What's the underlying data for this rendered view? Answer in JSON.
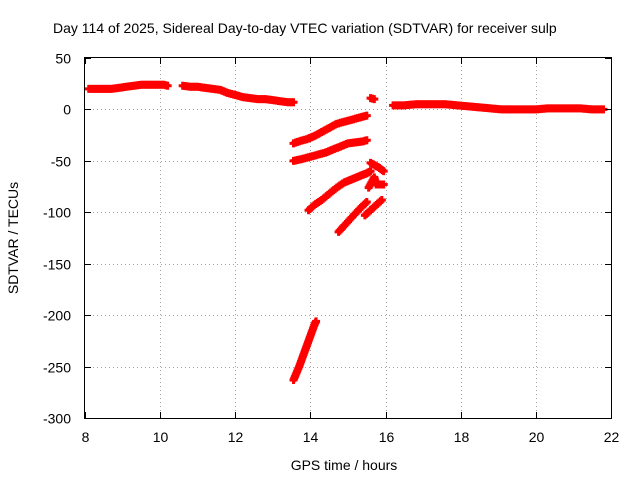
{
  "chart_data": {
    "type": "scatter",
    "title": "Day 114 of 2025, Sidereal Day-to-day VTEC variation (SDTVAR) for receiver sulp",
    "xlabel": "GPS time / hours",
    "ylabel": "SDTVAR / TECUs",
    "xlim": [
      8,
      22
    ],
    "ylim": [
      -300,
      50
    ],
    "xticks": [
      8,
      10,
      12,
      14,
      16,
      18,
      20,
      22
    ],
    "yticks": [
      50,
      0,
      -50,
      -100,
      -150,
      -200,
      -250,
      -300
    ],
    "grid": true,
    "marker_color": "#ff0000",
    "series": [
      {
        "name": "arc-1",
        "points": [
          [
            8.1,
            20
          ],
          [
            8.3,
            20
          ],
          [
            8.4,
            20
          ],
          [
            8.7,
            20
          ],
          [
            8.9,
            21
          ],
          [
            9.1,
            22
          ],
          [
            9.3,
            23
          ],
          [
            9.5,
            24
          ],
          [
            9.7,
            24
          ],
          [
            9.9,
            24
          ],
          [
            10.1,
            24
          ],
          [
            10.2,
            23
          ]
        ]
      },
      {
        "name": "arc-2",
        "points": [
          [
            10.6,
            23
          ],
          [
            10.8,
            22
          ],
          [
            11.0,
            22
          ],
          [
            11.2,
            21
          ],
          [
            11.4,
            20
          ],
          [
            11.6,
            19
          ],
          [
            11.8,
            16
          ],
          [
            12.0,
            14
          ],
          [
            12.2,
            12
          ],
          [
            12.4,
            11
          ],
          [
            12.6,
            10
          ],
          [
            12.8,
            10
          ],
          [
            13.0,
            9
          ],
          [
            13.2,
            8
          ],
          [
            13.4,
            7
          ],
          [
            13.55,
            7
          ]
        ]
      },
      {
        "name": "arc-3",
        "points": [
          [
            13.55,
            -33
          ],
          [
            13.7,
            -31
          ],
          [
            13.9,
            -29
          ],
          [
            14.1,
            -26
          ],
          [
            14.3,
            -22
          ],
          [
            14.5,
            -18
          ],
          [
            14.7,
            -14
          ],
          [
            14.9,
            -12
          ],
          [
            15.1,
            -10
          ],
          [
            15.3,
            -8
          ],
          [
            15.5,
            -6
          ]
        ]
      },
      {
        "name": "arc-4",
        "points": [
          [
            13.55,
            -50
          ],
          [
            13.8,
            -48
          ],
          [
            14.0,
            -46
          ],
          [
            14.2,
            -44
          ],
          [
            14.4,
            -42
          ],
          [
            14.6,
            -39
          ],
          [
            14.8,
            -36
          ],
          [
            15.0,
            -33
          ],
          [
            15.2,
            -32
          ],
          [
            15.4,
            -31
          ],
          [
            15.5,
            -30
          ]
        ]
      },
      {
        "name": "arc-5",
        "points": [
          [
            13.55,
            -263
          ],
          [
            13.7,
            -250
          ],
          [
            13.8,
            -240
          ],
          [
            13.9,
            -230
          ],
          [
            14.0,
            -220
          ],
          [
            14.1,
            -210
          ],
          [
            14.15,
            -206
          ]
        ]
      },
      {
        "name": "arc-6",
        "points": [
          [
            13.95,
            -98
          ],
          [
            14.1,
            -93
          ],
          [
            14.3,
            -88
          ],
          [
            14.5,
            -82
          ],
          [
            14.7,
            -76
          ],
          [
            14.9,
            -71
          ],
          [
            15.1,
            -68
          ],
          [
            15.3,
            -65
          ],
          [
            15.5,
            -62
          ],
          [
            15.6,
            -60
          ]
        ]
      },
      {
        "name": "arc-7",
        "points": [
          [
            14.75,
            -119
          ],
          [
            14.9,
            -113
          ],
          [
            15.1,
            -105
          ],
          [
            15.3,
            -97
          ],
          [
            15.5,
            -90
          ]
        ]
      },
      {
        "name": "arc-8",
        "points": [
          [
            15.45,
            -103
          ],
          [
            15.6,
            -98
          ],
          [
            15.75,
            -93
          ],
          [
            15.9,
            -88
          ]
        ]
      },
      {
        "name": "arc-9",
        "points": [
          [
            15.6,
            -52
          ],
          [
            15.8,
            -56
          ],
          [
            15.95,
            -60
          ]
        ]
      },
      {
        "name": "arc-10",
        "points": [
          [
            15.55,
            -76
          ],
          [
            15.7,
            -66
          ],
          [
            15.75,
            -73
          ],
          [
            15.95,
            -73
          ]
        ]
      },
      {
        "name": "arc-11",
        "points": [
          [
            15.6,
            11
          ],
          [
            15.7,
            10
          ]
        ]
      },
      {
        "name": "arc-12",
        "points": [
          [
            16.2,
            4
          ],
          [
            16.5,
            4
          ],
          [
            16.8,
            5
          ],
          [
            17.0,
            5
          ],
          [
            17.3,
            5
          ],
          [
            17.6,
            5
          ],
          [
            17.9,
            4
          ],
          [
            18.2,
            3
          ],
          [
            18.5,
            2
          ],
          [
            18.8,
            1
          ],
          [
            19.1,
            0
          ],
          [
            19.4,
            0
          ],
          [
            19.7,
            0
          ],
          [
            20.0,
            0
          ],
          [
            20.3,
            1
          ],
          [
            20.6,
            1
          ],
          [
            20.9,
            1
          ],
          [
            21.2,
            1
          ],
          [
            21.5,
            0
          ],
          [
            21.8,
            0
          ]
        ]
      }
    ]
  }
}
